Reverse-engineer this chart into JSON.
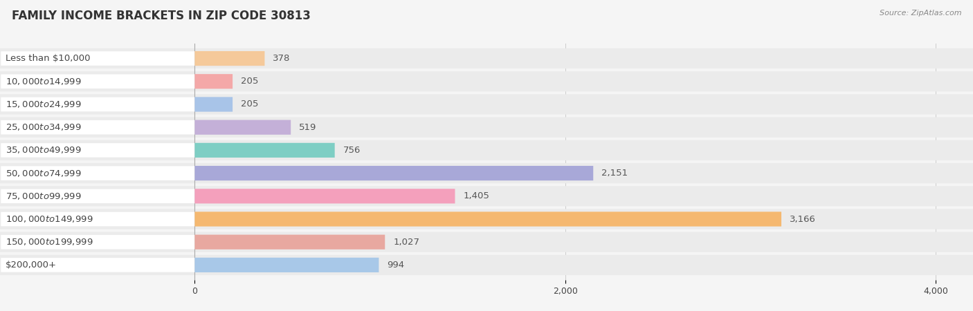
{
  "title": "FAMILY INCOME BRACKETS IN ZIP CODE 30813",
  "source": "Source: ZipAtlas.com",
  "categories": [
    "Less than $10,000",
    "$10,000 to $14,999",
    "$15,000 to $24,999",
    "$25,000 to $34,999",
    "$35,000 to $49,999",
    "$50,000 to $74,999",
    "$75,000 to $99,999",
    "$100,000 to $149,999",
    "$150,000 to $199,999",
    "$200,000+"
  ],
  "values": [
    378,
    205,
    205,
    519,
    756,
    2151,
    1405,
    3166,
    1027,
    994
  ],
  "bar_colors": [
    "#F5C99A",
    "#F4A8A8",
    "#A8C4E8",
    "#C4B0D8",
    "#7ECEC4",
    "#A8A8D8",
    "#F4A0BC",
    "#F5B870",
    "#E8A8A0",
    "#A8C8E8"
  ],
  "xlim_left": -1050,
  "xlim_right": 4200,
  "xticks": [
    0,
    2000,
    4000
  ],
  "bg_color": "#f5f5f5",
  "bar_bg_color": "#ffffff",
  "row_bg_color": "#ebebeb",
  "label_color": "#444444",
  "value_color": "#555555",
  "title_color": "#333333",
  "source_color": "#888888",
  "bar_height": 0.62,
  "title_fontsize": 12,
  "label_fontsize": 9.5,
  "value_fontsize": 9.5,
  "tick_fontsize": 9
}
